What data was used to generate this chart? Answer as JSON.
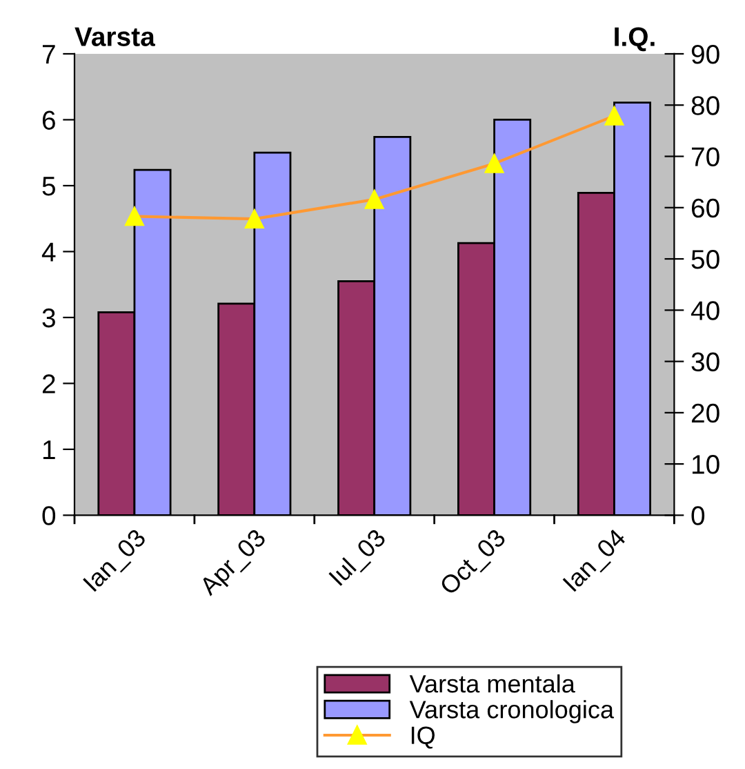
{
  "chart_data": {
    "type": "bar",
    "ylabel": "Varsta",
    "y2label": "I.Q.",
    "categories": [
      "Ian_03",
      "Apr_03",
      "Iul_03",
      "Oct_03",
      "Ian_04"
    ],
    "series": [
      {
        "name": "Varsta mentala",
        "color": "#993366",
        "values": [
          3.08,
          3.21,
          3.55,
          4.13,
          4.89
        ]
      },
      {
        "name": "Varsta cronologica",
        "color": "#9999ff",
        "values": [
          5.24,
          5.5,
          5.74,
          6.0,
          6.26
        ]
      },
      {
        "name": "IQ",
        "type": "line",
        "axis": "y2",
        "color": "#ff9933",
        "marker": "triangle",
        "values": [
          58.3,
          57.8,
          61.6,
          68.6,
          77.9
        ]
      }
    ],
    "ylim": [
      0,
      7
    ],
    "yticks": [
      0,
      1,
      2,
      3,
      4,
      5,
      6,
      7
    ],
    "y2lim": [
      0,
      90
    ],
    "y2ticks": [
      0,
      10,
      20,
      30,
      40,
      50,
      60,
      70,
      80,
      90
    ],
    "grid": false,
    "legend": "bottom"
  }
}
